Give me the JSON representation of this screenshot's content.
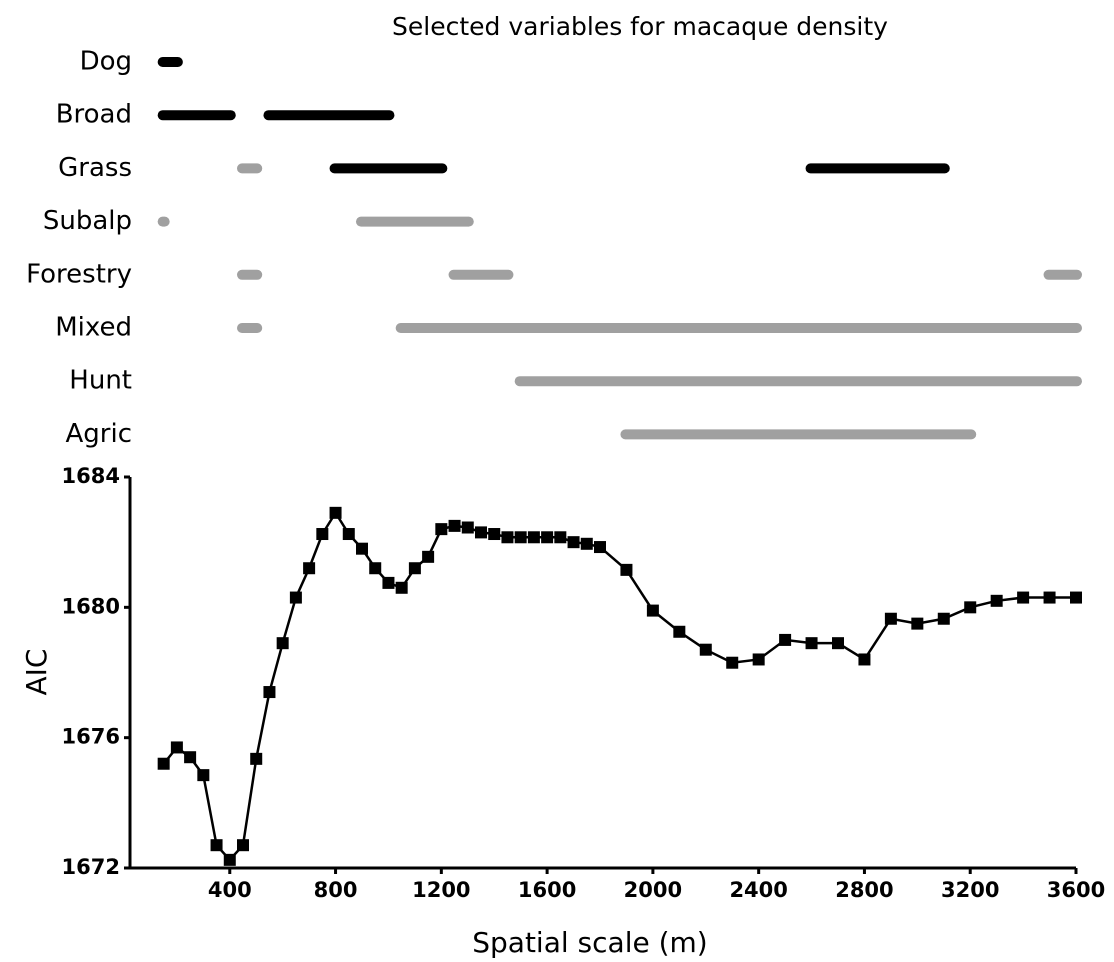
{
  "chart_data": [
    {
      "type": "range",
      "title": "Selected variables for macaque density",
      "rows": [
        {
          "label": "Dog",
          "bars": [
            {
              "start": 150,
              "end": 200,
              "color": "#000000"
            }
          ]
        },
        {
          "label": "Broad",
          "bars": [
            {
              "start": 150,
              "end": 400,
              "color": "#000000"
            },
            {
              "start": 550,
              "end": 1000,
              "color": "#000000"
            }
          ]
        },
        {
          "label": "Grass",
          "bars": [
            {
              "start": 450,
              "end": 500,
              "color": "#a0a0a0"
            },
            {
              "start": 800,
              "end": 1200,
              "color": "#000000"
            },
            {
              "start": 2600,
              "end": 3100,
              "color": "#000000"
            }
          ]
        },
        {
          "label": "Subalp",
          "bars": [
            {
              "start": 150,
              "end": 150,
              "color": "#a0a0a0"
            },
            {
              "start": 900,
              "end": 1300,
              "color": "#a0a0a0"
            }
          ]
        },
        {
          "label": "Forestry",
          "bars": [
            {
              "start": 450,
              "end": 500,
              "color": "#a0a0a0"
            },
            {
              "start": 1250,
              "end": 1450,
              "color": "#a0a0a0"
            },
            {
              "start": 3500,
              "end": 3600,
              "color": "#a0a0a0"
            }
          ]
        },
        {
          "label": "Mixed",
          "bars": [
            {
              "start": 450,
              "end": 500,
              "color": "#a0a0a0"
            },
            {
              "start": 1050,
              "end": 3600,
              "color": "#a0a0a0"
            }
          ]
        },
        {
          "label": "Hunt",
          "bars": [
            {
              "start": 1500,
              "end": 3600,
              "color": "#a0a0a0"
            }
          ]
        },
        {
          "label": "Agric",
          "bars": [
            {
              "start": 1900,
              "end": 3200,
              "color": "#a0a0a0"
            }
          ]
        }
      ]
    },
    {
      "type": "line",
      "x_label": "Spatial scale (m)",
      "y_label": "AIC",
      "color": "#000000",
      "x": [
        150,
        200,
        250,
        300,
        350,
        400,
        450,
        500,
        550,
        600,
        650,
        700,
        750,
        800,
        850,
        900,
        950,
        1000,
        1050,
        1100,
        1150,
        1200,
        1250,
        1300,
        1350,
        1400,
        1450,
        1500,
        1550,
        1600,
        1650,
        1700,
        1750,
        1800,
        1900,
        2000,
        2100,
        2200,
        2300,
        2400,
        2500,
        2600,
        2700,
        2800,
        2900,
        3000,
        3100,
        3200,
        3300,
        3400,
        3500,
        3600
      ],
      "values": [
        1675.2,
        1675.7,
        1675.4,
        1674.85,
        1672.7,
        1672.25,
        1672.7,
        1675.35,
        1677.4,
        1678.9,
        1680.3,
        1681.2,
        1682.25,
        1682.9,
        1682.25,
        1681.8,
        1681.2,
        1680.75,
        1680.6,
        1681.2,
        1681.55,
        1682.4,
        1682.5,
        1682.45,
        1682.3,
        1682.25,
        1682.15,
        1682.15,
        1682.15,
        1682.15,
        1682.15,
        1682.0,
        1681.95,
        1681.85,
        1681.15,
        1679.9,
        1679.25,
        1678.7,
        1678.3,
        1678.4,
        1679.0,
        1678.9,
        1678.9,
        1678.4,
        1679.65,
        1679.5,
        1679.65,
        1680.0,
        1680.2,
        1680.3,
        1680.3,
        1680.3
      ],
      "xlim": [
        0,
        3600
      ],
      "xticks": [
        400,
        800,
        1200,
        1600,
        2000,
        2400,
        2800,
        3200,
        3600
      ],
      "ylim": [
        1672,
        1684
      ],
      "yticks": [
        1672,
        1676,
        1680,
        1684
      ]
    }
  ]
}
